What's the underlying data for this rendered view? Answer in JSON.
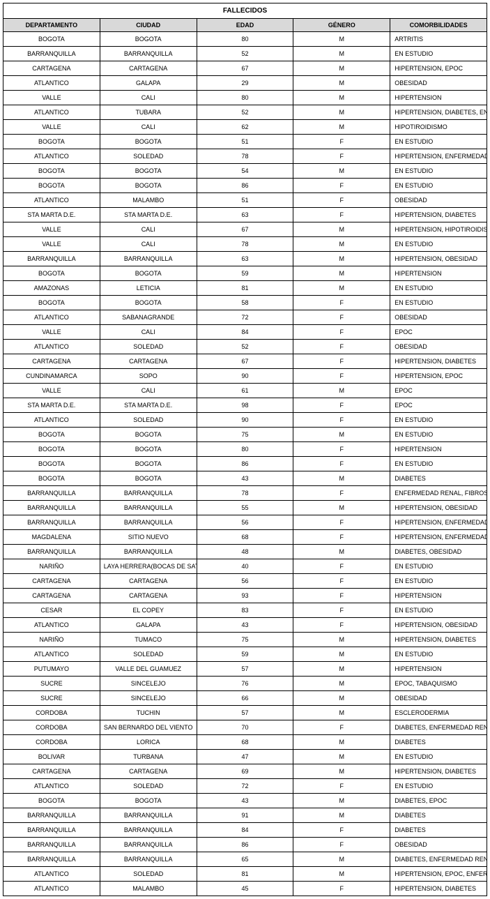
{
  "title": "FALLECIDOS",
  "columns": [
    "DEPARTAMENTO",
    "CIUDAD",
    "EDAD",
    "GÉNERO",
    "COMORBILIDADES"
  ],
  "rows": [
    [
      "BOGOTA",
      "BOGOTA",
      "80",
      "M",
      "ARTRITIS"
    ],
    [
      "BARRANQUILLA",
      "BARRANQUILLA",
      "52",
      "M",
      "EN ESTUDIO"
    ],
    [
      "CARTAGENA",
      "CARTAGENA",
      "67",
      "M",
      "HIPERTENSION, EPOC"
    ],
    [
      "ATLANTICO",
      "GALAPA",
      "29",
      "M",
      "OBESIDAD"
    ],
    [
      "VALLE",
      "CALI",
      "80",
      "M",
      "HIPERTENSION"
    ],
    [
      "ATLANTICO",
      "TUBARA",
      "52",
      "M",
      "HIPERTENSION, DIABETES, ENFERMEDAD RENAL"
    ],
    [
      "VALLE",
      "CALI",
      "62",
      "M",
      "HIPOTIROIDISMO"
    ],
    [
      "BOGOTA",
      "BOGOTA",
      "51",
      "F",
      "EN ESTUDIO"
    ],
    [
      "ATLANTICO",
      "SOLEDAD",
      "78",
      "F",
      "HIPERTENSION, ENFERMEDAD CARDIOVASCULAR, ENFERMEDAD RENAL"
    ],
    [
      "BOGOTA",
      "BOGOTA",
      "54",
      "M",
      "EN ESTUDIO"
    ],
    [
      "BOGOTA",
      "BOGOTA",
      "86",
      "F",
      "EN ESTUDIO"
    ],
    [
      "ATLANTICO",
      "MALAMBO",
      "51",
      "F",
      "OBESIDAD"
    ],
    [
      "STA MARTA D.E.",
      "STA MARTA D.E.",
      "63",
      "F",
      "HIPERTENSION, DIABETES"
    ],
    [
      "VALLE",
      "CALI",
      "67",
      "M",
      "HIPERTENSION, HIPOTIROIDISMO"
    ],
    [
      "VALLE",
      "CALI",
      "78",
      "M",
      "EN ESTUDIO"
    ],
    [
      "BARRANQUILLA",
      "BARRANQUILLA",
      "63",
      "M",
      "HIPERTENSION, OBESIDAD"
    ],
    [
      "BOGOTA",
      "BOGOTA",
      "59",
      "M",
      "HIPERTENSION"
    ],
    [
      "AMAZONAS",
      "LETICIA",
      "81",
      "M",
      "EN ESTUDIO"
    ],
    [
      "BOGOTA",
      "BOGOTA",
      "58",
      "F",
      "EN ESTUDIO"
    ],
    [
      "ATLANTICO",
      "SABANAGRANDE",
      "72",
      "F",
      "OBESIDAD"
    ],
    [
      "VALLE",
      "CALI",
      "84",
      "F",
      "EPOC"
    ],
    [
      "ATLANTICO",
      "SOLEDAD",
      "52",
      "F",
      "OBESIDAD"
    ],
    [
      "CARTAGENA",
      "CARTAGENA",
      "67",
      "F",
      "HIPERTENSION, DIABETES"
    ],
    [
      "CUNDINAMARCA",
      "SOPO",
      "90",
      "F",
      "HIPERTENSION, EPOC"
    ],
    [
      "VALLE",
      "CALI",
      "61",
      "M",
      "EPOC"
    ],
    [
      "STA MARTA D.E.",
      "STA MARTA D.E.",
      "98",
      "F",
      "EPOC"
    ],
    [
      "ATLANTICO",
      "SOLEDAD",
      "90",
      "F",
      "EN ESTUDIO"
    ],
    [
      "BOGOTA",
      "BOGOTA",
      "75",
      "M",
      "EN ESTUDIO"
    ],
    [
      "BOGOTA",
      "BOGOTA",
      "80",
      "F",
      "HIPERTENSION"
    ],
    [
      "BOGOTA",
      "BOGOTA",
      "86",
      "F",
      "EN ESTUDIO"
    ],
    [
      "BOGOTA",
      "BOGOTA",
      "43",
      "M",
      "DIABETES"
    ],
    [
      "BARRANQUILLA",
      "BARRANQUILLA",
      "78",
      "F",
      "ENFERMEDAD RENAL, FIBROSIS PULMONAR"
    ],
    [
      "BARRANQUILLA",
      "BARRANQUILLA",
      "55",
      "M",
      "HIPERTENSION, OBESIDAD"
    ],
    [
      "BARRANQUILLA",
      "BARRANQUILLA",
      "56",
      "F",
      "HIPERTENSION, ENFERMEDAD RENAL, DIABETES"
    ],
    [
      "MAGDALENA",
      "SITIO NUEVO",
      "68",
      "F",
      "HIPERTENSION, ENFERMEDAD CARDIOVASCULAR, OBESIDAD"
    ],
    [
      "BARRANQUILLA",
      "BARRANQUILLA",
      "48",
      "M",
      "DIABETES, OBESIDAD"
    ],
    [
      "NARIÑO",
      "LAYA HERRERA(BOCAS DE SATING",
      "40",
      "F",
      "EN ESTUDIO"
    ],
    [
      "CARTAGENA",
      "CARTAGENA",
      "56",
      "F",
      "EN ESTUDIO"
    ],
    [
      "CARTAGENA",
      "CARTAGENA",
      "93",
      "F",
      "HIPERTENSION"
    ],
    [
      "CESAR",
      "EL COPEY",
      "83",
      "F",
      "EN ESTUDIO"
    ],
    [
      "ATLANTICO",
      "GALAPA",
      "43",
      "F",
      "HIPERTENSION, OBESIDAD"
    ],
    [
      "NARIÑO",
      "TUMACO",
      "75",
      "M",
      "HIPERTENSION, DIABETES"
    ],
    [
      "ATLANTICO",
      "SOLEDAD",
      "59",
      "M",
      "EN ESTUDIO"
    ],
    [
      "PUTUMAYO",
      "VALLE DEL GUAMUEZ",
      "57",
      "M",
      "HIPERTENSION"
    ],
    [
      "SUCRE",
      "SINCELEJO",
      "76",
      "M",
      "EPOC, TABAQUISMO"
    ],
    [
      "SUCRE",
      "SINCELEJO",
      "66",
      "M",
      "OBESIDAD"
    ],
    [
      "CORDOBA",
      "TUCHIN",
      "57",
      "M",
      "ESCLERODERMIA"
    ],
    [
      "CORDOBA",
      "SAN BERNARDO DEL VIENTO",
      "70",
      "F",
      "DIABETES, ENFERMEDAD RENAL"
    ],
    [
      "CORDOBA",
      "LORICA",
      "68",
      "M",
      "DIABETES"
    ],
    [
      "BOLIVAR",
      "TURBANA",
      "47",
      "M",
      "EN ESTUDIO"
    ],
    [
      "CARTAGENA",
      "CARTAGENA",
      "69",
      "M",
      "HIPERTENSION, DIABETES"
    ],
    [
      "ATLANTICO",
      "SOLEDAD",
      "72",
      "F",
      "EN ESTUDIO"
    ],
    [
      "BOGOTA",
      "BOGOTA",
      "43",
      "M",
      "DIABETES, EPOC"
    ],
    [
      "BARRANQUILLA",
      "BARRANQUILLA",
      "91",
      "M",
      "DIABETES"
    ],
    [
      "BARRANQUILLA",
      "BARRANQUILLA",
      "84",
      "F",
      "DIABETES"
    ],
    [
      "BARRANQUILLA",
      "BARRANQUILLA",
      "86",
      "F",
      "OBESIDAD"
    ],
    [
      "BARRANQUILLA",
      "BARRANQUILLA",
      "65",
      "M",
      "DIABETES, ENFERMEDAD RENAL"
    ],
    [
      "ATLANTICO",
      "SOLEDAD",
      "81",
      "M",
      "HIPERTENSION, EPOC, ENFERMEDAD RENAL, DAÑO HEPATICO CRONICO"
    ],
    [
      "ATLANTICO",
      "MALAMBO",
      "45",
      "F",
      "HIPERTENSION, DIABETES"
    ]
  ],
  "style": {
    "title_bg": "#ffffff",
    "header_bg": "#d9d9d9",
    "border_color": "#000000",
    "font_family": "Arial",
    "title_fontsize": 10,
    "header_fontsize": 9,
    "cell_fontsize": 9,
    "col_widths_pct": [
      13,
      16,
      7,
      7,
      57
    ],
    "col_align": [
      "center",
      "center",
      "center",
      "center",
      "left"
    ]
  }
}
